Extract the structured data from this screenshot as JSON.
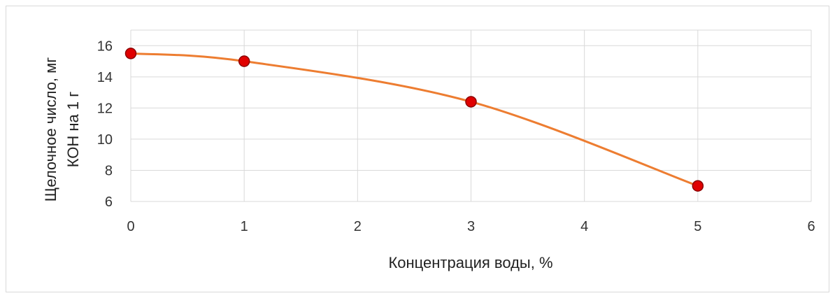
{
  "chart_data": {
    "type": "scatter",
    "title": "",
    "xlabel": "Концентрация воды, %",
    "ylabel_lines": [
      "Щелочное число, мг",
      "КОН на 1 г"
    ],
    "xlim": [
      0,
      6
    ],
    "ylim": [
      6,
      17
    ],
    "x_ticks": [
      "0",
      "1",
      "2",
      "3",
      "4",
      "5",
      "6"
    ],
    "y_ticks": [
      "6",
      "8",
      "10",
      "12",
      "14",
      "16"
    ],
    "grid": true,
    "legend": "none",
    "series": [
      {
        "x": [
          0,
          1,
          3,
          5
        ],
        "y": [
          15.5,
          15.0,
          12.4,
          7.0
        ],
        "line": "smooth",
        "line_color": "#ED7D31",
        "marker_color": "#E00000",
        "marker_edge": "#8B0000"
      }
    ]
  }
}
